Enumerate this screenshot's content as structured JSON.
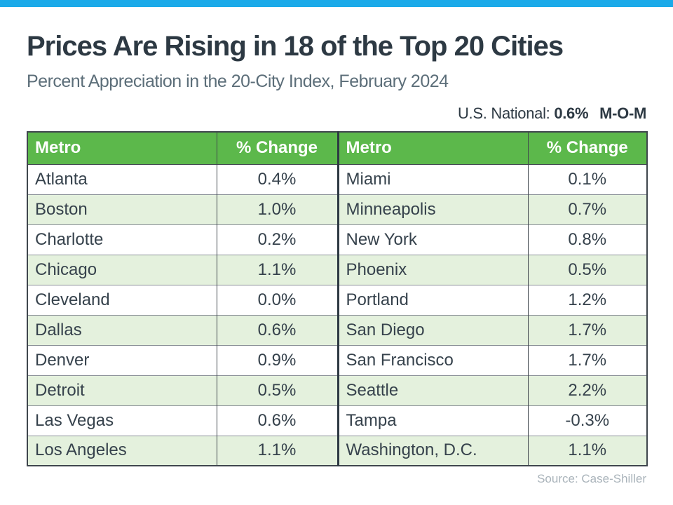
{
  "page": {
    "title": "Prices Are Rising in 18 of the Top 20 Cities",
    "subtitle": "Percent Appreciation in the 20-City Index, February 2024",
    "national_label": "U.S. National:",
    "national_value": "0.6%",
    "national_suffix": "M-O-M",
    "source": "Source: Case-Shiller"
  },
  "colors": {
    "top_bar": "#1BAAE9",
    "header_green": "#5CB84B",
    "row_green": "#E4F1DD",
    "title_text": "#2D3943",
    "subtitle_text": "#5C6E79",
    "body_text": "#36424C",
    "source_text": "#A9B3BA"
  },
  "chart_data": {
    "type": "table",
    "title": "Prices Are Rising in 18 of the Top 20 Cities",
    "subtitle": "Percent Appreciation in the 20-City Index, February 2024",
    "national_mom_change": "0.6%",
    "columns": [
      "Metro",
      "% Change",
      "Metro",
      "% Change"
    ],
    "rows": [
      [
        "Atlanta",
        "0.4%",
        "Miami",
        "0.1%"
      ],
      [
        "Boston",
        "1.0%",
        "Minneapolis",
        "0.7%"
      ],
      [
        "Charlotte",
        "0.2%",
        "New York",
        "0.8%"
      ],
      [
        "Chicago",
        "1.1%",
        "Phoenix",
        "0.5%"
      ],
      [
        "Cleveland",
        "0.0%",
        "Portland",
        "1.2%"
      ],
      [
        "Dallas",
        "0.6%",
        "San Diego",
        "1.7%"
      ],
      [
        "Denver",
        "0.9%",
        "San Francisco",
        "1.7%"
      ],
      [
        "Detroit",
        "0.5%",
        "Seattle",
        "2.2%"
      ],
      [
        "Las Vegas",
        "0.6%",
        "Tampa",
        "-0.3%"
      ],
      [
        "Los Angeles",
        "1.1%",
        "Washington, D.C.",
        "1.1%"
      ]
    ],
    "source": "Source: Case-Shiller"
  }
}
